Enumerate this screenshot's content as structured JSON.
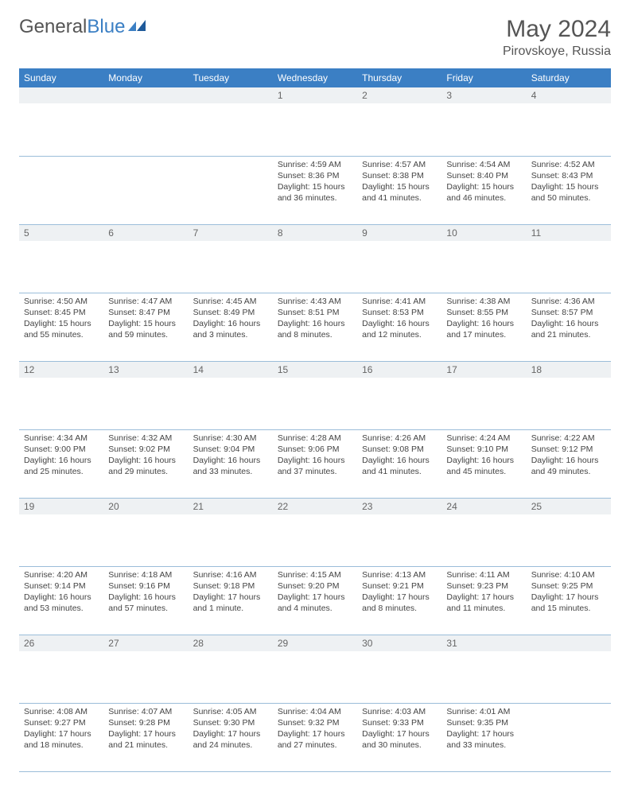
{
  "brand": {
    "part1": "General",
    "part2": "Blue"
  },
  "title": "May 2024",
  "location": "Pirovskoye, Russia",
  "colors": {
    "header_bg": "#3b7fc4",
    "header_text": "#ffffff",
    "daynum_bg": "#eef1f3",
    "rule": "#9bbdd9",
    "text": "#444444"
  },
  "weekdays": [
    "Sunday",
    "Monday",
    "Tuesday",
    "Wednesday",
    "Thursday",
    "Friday",
    "Saturday"
  ],
  "weeks": [
    [
      null,
      null,
      null,
      {
        "n": "1",
        "sunrise": "4:59 AM",
        "sunset": "8:36 PM",
        "daylight": "15 hours and 36 minutes."
      },
      {
        "n": "2",
        "sunrise": "4:57 AM",
        "sunset": "8:38 PM",
        "daylight": "15 hours and 41 minutes."
      },
      {
        "n": "3",
        "sunrise": "4:54 AM",
        "sunset": "8:40 PM",
        "daylight": "15 hours and 46 minutes."
      },
      {
        "n": "4",
        "sunrise": "4:52 AM",
        "sunset": "8:43 PM",
        "daylight": "15 hours and 50 minutes."
      }
    ],
    [
      {
        "n": "5",
        "sunrise": "4:50 AM",
        "sunset": "8:45 PM",
        "daylight": "15 hours and 55 minutes."
      },
      {
        "n": "6",
        "sunrise": "4:47 AM",
        "sunset": "8:47 PM",
        "daylight": "15 hours and 59 minutes."
      },
      {
        "n": "7",
        "sunrise": "4:45 AM",
        "sunset": "8:49 PM",
        "daylight": "16 hours and 3 minutes."
      },
      {
        "n": "8",
        "sunrise": "4:43 AM",
        "sunset": "8:51 PM",
        "daylight": "16 hours and 8 minutes."
      },
      {
        "n": "9",
        "sunrise": "4:41 AM",
        "sunset": "8:53 PM",
        "daylight": "16 hours and 12 minutes."
      },
      {
        "n": "10",
        "sunrise": "4:38 AM",
        "sunset": "8:55 PM",
        "daylight": "16 hours and 17 minutes."
      },
      {
        "n": "11",
        "sunrise": "4:36 AM",
        "sunset": "8:57 PM",
        "daylight": "16 hours and 21 minutes."
      }
    ],
    [
      {
        "n": "12",
        "sunrise": "4:34 AM",
        "sunset": "9:00 PM",
        "daylight": "16 hours and 25 minutes."
      },
      {
        "n": "13",
        "sunrise": "4:32 AM",
        "sunset": "9:02 PM",
        "daylight": "16 hours and 29 minutes."
      },
      {
        "n": "14",
        "sunrise": "4:30 AM",
        "sunset": "9:04 PM",
        "daylight": "16 hours and 33 minutes."
      },
      {
        "n": "15",
        "sunrise": "4:28 AM",
        "sunset": "9:06 PM",
        "daylight": "16 hours and 37 minutes."
      },
      {
        "n": "16",
        "sunrise": "4:26 AM",
        "sunset": "9:08 PM",
        "daylight": "16 hours and 41 minutes."
      },
      {
        "n": "17",
        "sunrise": "4:24 AM",
        "sunset": "9:10 PM",
        "daylight": "16 hours and 45 minutes."
      },
      {
        "n": "18",
        "sunrise": "4:22 AM",
        "sunset": "9:12 PM",
        "daylight": "16 hours and 49 minutes."
      }
    ],
    [
      {
        "n": "19",
        "sunrise": "4:20 AM",
        "sunset": "9:14 PM",
        "daylight": "16 hours and 53 minutes."
      },
      {
        "n": "20",
        "sunrise": "4:18 AM",
        "sunset": "9:16 PM",
        "daylight": "16 hours and 57 minutes."
      },
      {
        "n": "21",
        "sunrise": "4:16 AM",
        "sunset": "9:18 PM",
        "daylight": "17 hours and 1 minute."
      },
      {
        "n": "22",
        "sunrise": "4:15 AM",
        "sunset": "9:20 PM",
        "daylight": "17 hours and 4 minutes."
      },
      {
        "n": "23",
        "sunrise": "4:13 AM",
        "sunset": "9:21 PM",
        "daylight": "17 hours and 8 minutes."
      },
      {
        "n": "24",
        "sunrise": "4:11 AM",
        "sunset": "9:23 PM",
        "daylight": "17 hours and 11 minutes."
      },
      {
        "n": "25",
        "sunrise": "4:10 AM",
        "sunset": "9:25 PM",
        "daylight": "17 hours and 15 minutes."
      }
    ],
    [
      {
        "n": "26",
        "sunrise": "4:08 AM",
        "sunset": "9:27 PM",
        "daylight": "17 hours and 18 minutes."
      },
      {
        "n": "27",
        "sunrise": "4:07 AM",
        "sunset": "9:28 PM",
        "daylight": "17 hours and 21 minutes."
      },
      {
        "n": "28",
        "sunrise": "4:05 AM",
        "sunset": "9:30 PM",
        "daylight": "17 hours and 24 minutes."
      },
      {
        "n": "29",
        "sunrise": "4:04 AM",
        "sunset": "9:32 PM",
        "daylight": "17 hours and 27 minutes."
      },
      {
        "n": "30",
        "sunrise": "4:03 AM",
        "sunset": "9:33 PM",
        "daylight": "17 hours and 30 minutes."
      },
      {
        "n": "31",
        "sunrise": "4:01 AM",
        "sunset": "9:35 PM",
        "daylight": "17 hours and 33 minutes."
      },
      null
    ]
  ],
  "labels": {
    "sunrise": "Sunrise:",
    "sunset": "Sunset:",
    "daylight": "Daylight:"
  }
}
